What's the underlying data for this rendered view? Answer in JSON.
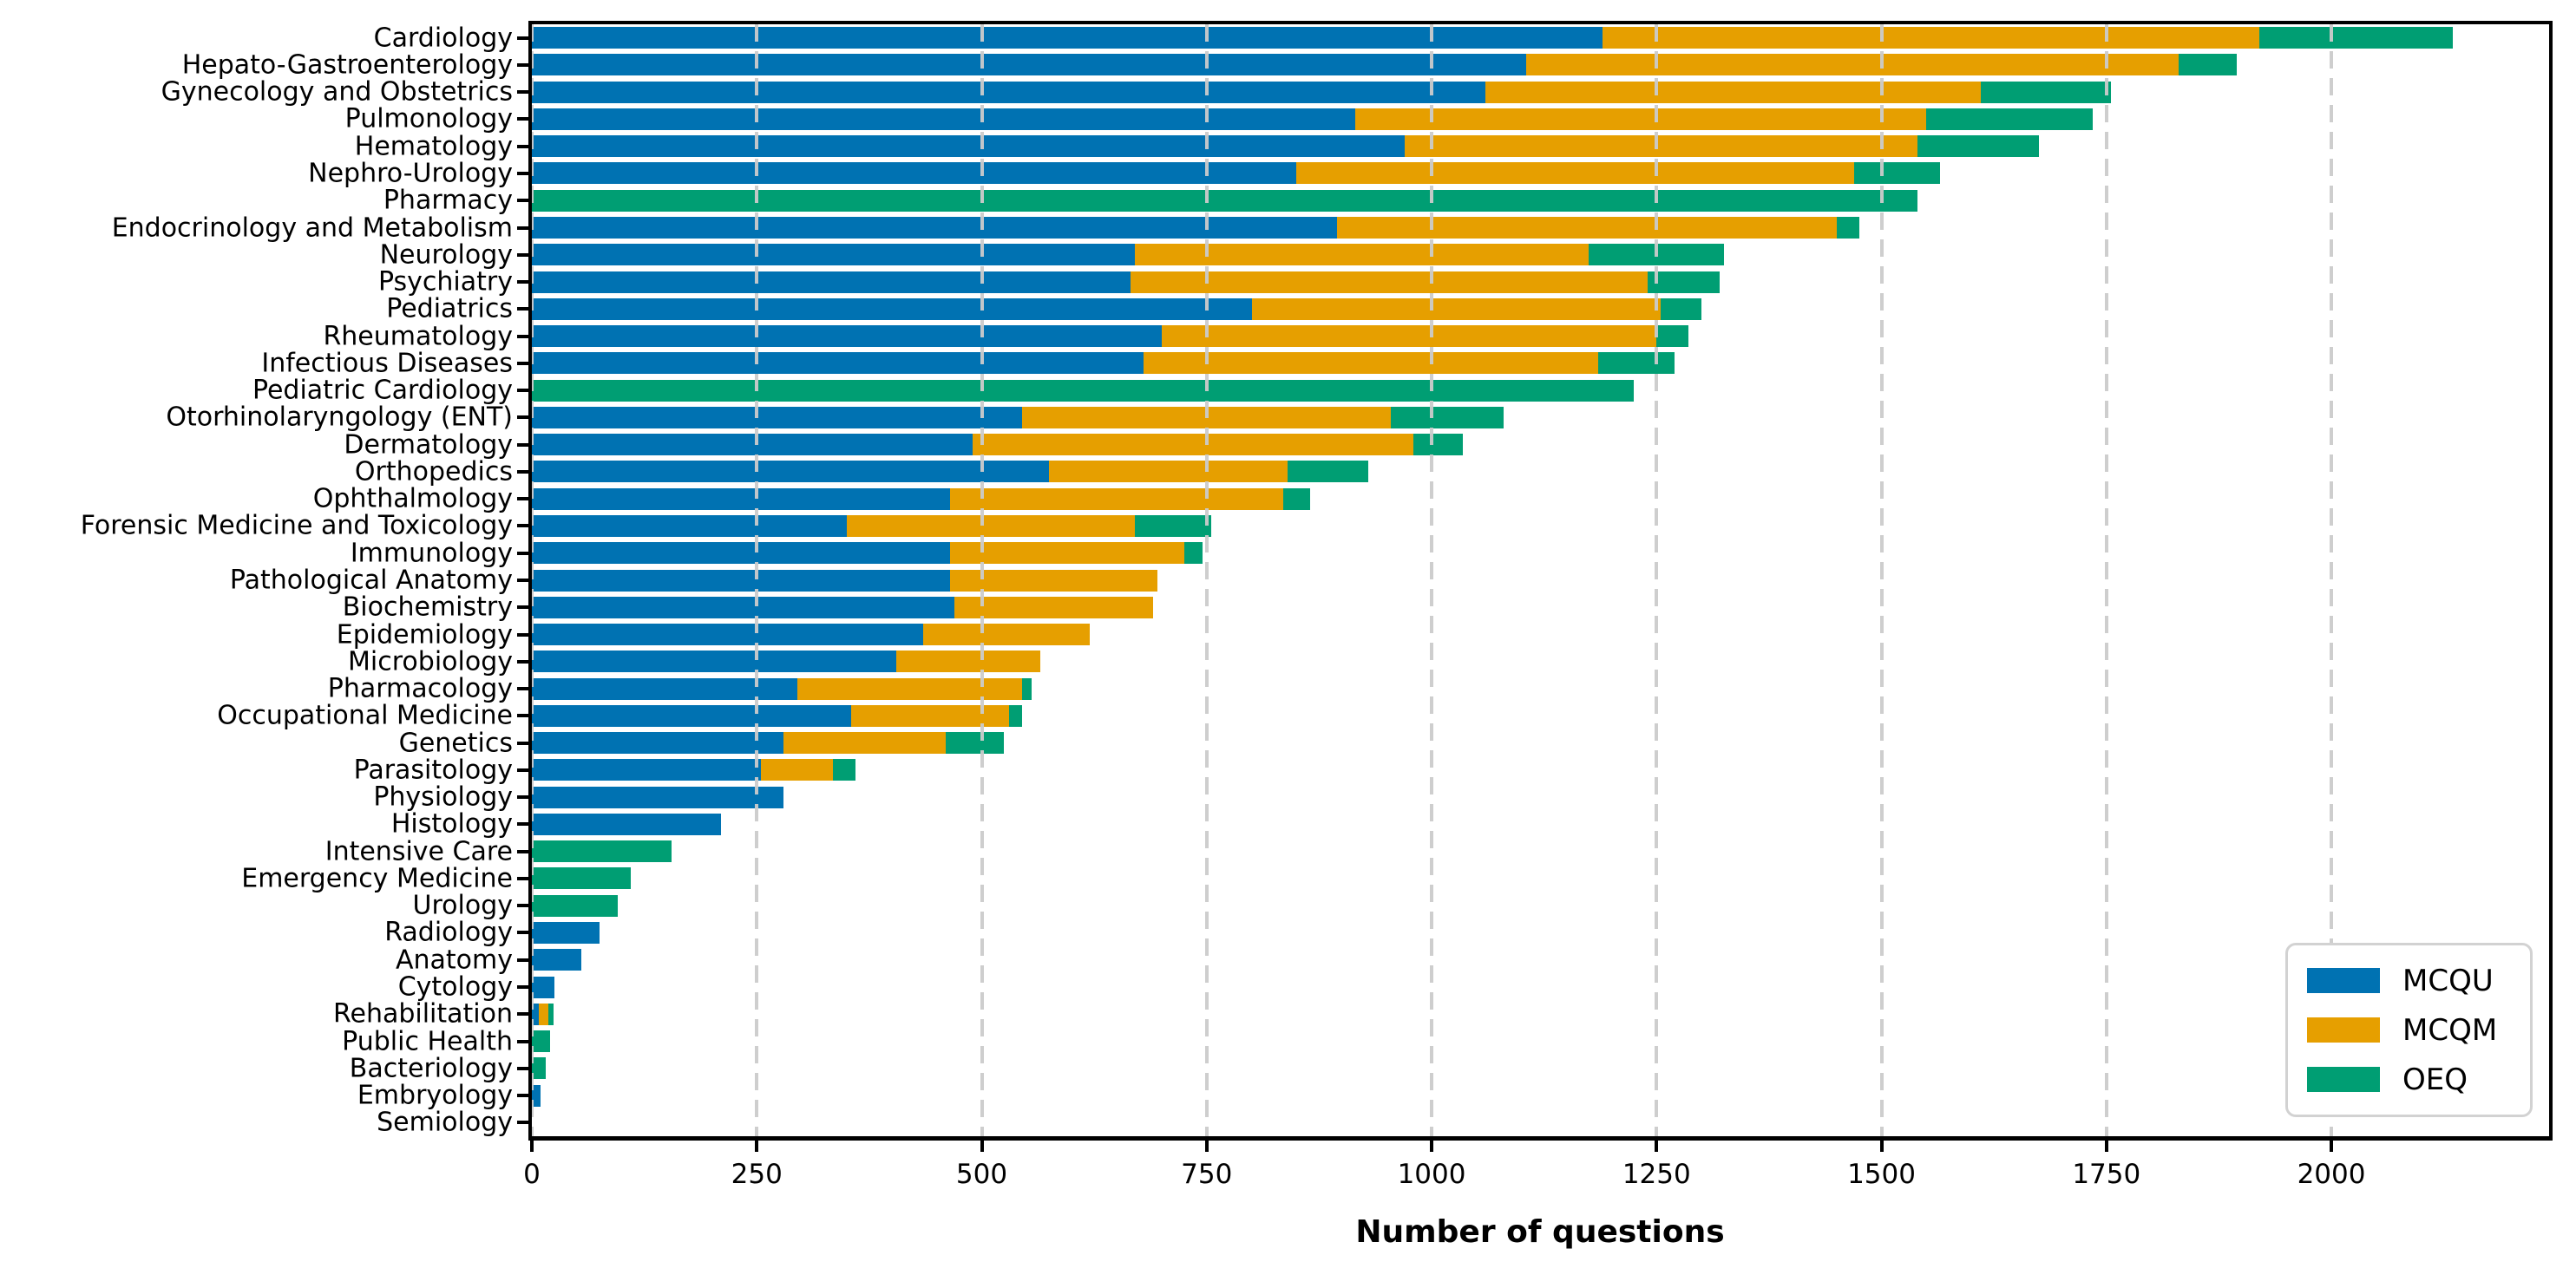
{
  "figure": {
    "xlabel": "Number of questions"
  },
  "chart_data": {
    "type": "bar",
    "orientation": "horizontal",
    "stacked": true,
    "title": "",
    "xlabel": "Number of questions",
    "ylabel": "",
    "xlim": [
      0,
      2242
    ],
    "xticks": [
      0,
      250,
      500,
      750,
      1000,
      1250,
      1500,
      1750,
      2000
    ],
    "grid": "vertical-dashed-on-top",
    "legend_position": "lower right",
    "categories": [
      "Cardiology",
      "Hepato-Gastroenterology",
      "Gynecology and Obstetrics",
      "Pulmonology",
      "Hematology",
      "Nephro-Urology",
      "Pharmacy",
      "Endocrinology and Metabolism",
      "Neurology",
      "Psychiatry",
      "Pediatrics",
      "Rheumatology",
      "Infectious Diseases",
      "Pediatric Cardiology",
      "Otorhinolaryngology (ENT)",
      "Dermatology",
      "Orthopedics",
      "Ophthalmology",
      "Forensic Medicine and Toxicology",
      "Immunology",
      "Pathological Anatomy",
      "Biochemistry",
      "Epidemiology",
      "Microbiology",
      "Pharmacology",
      "Occupational Medicine",
      "Genetics",
      "Parasitology",
      "Physiology",
      "Histology",
      "Intensive Care",
      "Emergency Medicine",
      "Urology",
      "Radiology",
      "Anatomy",
      "Cytology",
      "Rehabilitation",
      "Public Health",
      "Bacteriology",
      "Embryology",
      "Semiology"
    ],
    "series": [
      {
        "name": "MCQU",
        "color": "#0072B2",
        "values": [
          1190,
          1105,
          1060,
          915,
          970,
          850,
          0,
          895,
          670,
          665,
          800,
          700,
          680,
          0,
          545,
          490,
          575,
          465,
          350,
          465,
          465,
          470,
          435,
          405,
          295,
          355,
          280,
          255,
          280,
          210,
          0,
          0,
          0,
          75,
          55,
          25,
          8,
          0,
          0,
          10,
          0
        ]
      },
      {
        "name": "MCQM",
        "color": "#E69F00",
        "values": [
          730,
          725,
          550,
          635,
          570,
          620,
          0,
          555,
          505,
          575,
          455,
          550,
          505,
          0,
          410,
          490,
          265,
          370,
          320,
          260,
          230,
          220,
          185,
          160,
          250,
          175,
          180,
          80,
          0,
          0,
          0,
          0,
          0,
          0,
          0,
          0,
          10,
          0,
          0,
          0,
          0
        ]
      },
      {
        "name": "OEQ",
        "color": "#009E73",
        "values": [
          215,
          65,
          145,
          185,
          135,
          95,
          1540,
          25,
          150,
          80,
          45,
          35,
          85,
          1225,
          125,
          55,
          90,
          30,
          85,
          20,
          0,
          0,
          0,
          0,
          10,
          15,
          65,
          25,
          0,
          0,
          155,
          110,
          95,
          0,
          0,
          0,
          6,
          20,
          15,
          0,
          0
        ]
      }
    ]
  }
}
